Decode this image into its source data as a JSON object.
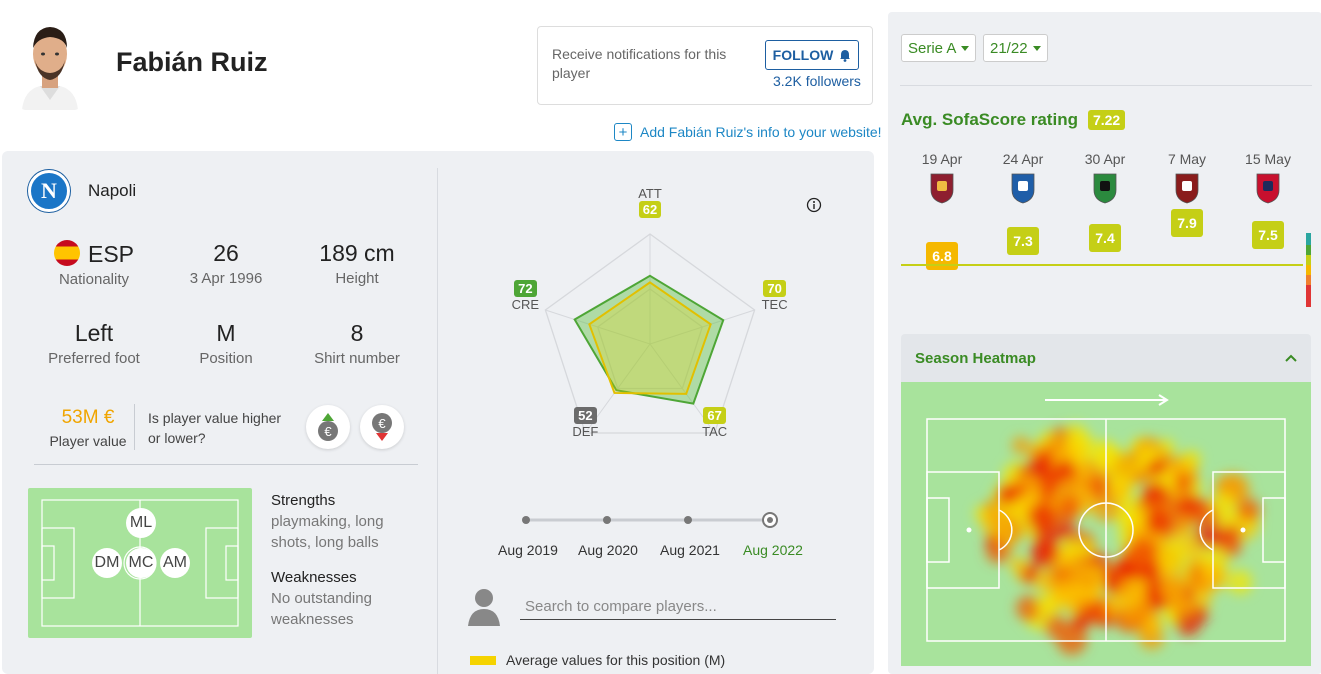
{
  "player": {
    "name": "Fabián Ruiz",
    "club": "Napoli",
    "nationality_code": "ESP",
    "nationality_label": "Nationality",
    "age": "26",
    "dob": "3 Apr 1996",
    "height": "189 cm",
    "height_label": "Height",
    "foot": "Left",
    "foot_label": "Preferred foot",
    "position": "M",
    "position_label": "Position",
    "shirt": "8",
    "shirt_label": "Shirt number",
    "value": "53M €",
    "value_label": "Player value",
    "value_question": "Is player value higher or lower?"
  },
  "notifications": {
    "text": "Receive notifications for this player",
    "follow_label": "FOLLOW",
    "followers": "3.2K followers"
  },
  "add_info": "Add Fabián Ruiz's info to your website!",
  "positions_map": [
    "ML",
    "DM",
    "MC",
    "AM"
  ],
  "strengths": {
    "heading": "Strengths",
    "text": "playmaking, long shots, long balls"
  },
  "weaknesses": {
    "heading": "Weaknesses",
    "text": "No outstanding weaknesses"
  },
  "attributes": {
    "items": [
      {
        "label": "ATT",
        "player": 62,
        "color": "#c5cf16"
      },
      {
        "label": "TEC",
        "player": 70,
        "color": "#c5cf16"
      },
      {
        "label": "TAC",
        "player": 67,
        "color": "#c5cf16"
      },
      {
        "label": "DEF",
        "player": 52,
        "color": "#6b6b6b"
      },
      {
        "label": "CRE",
        "player": 72,
        "color": "#4ea636"
      }
    ],
    "average_values": [
      56,
      58,
      56,
      55,
      58
    ],
    "timeline": [
      "Aug 2019",
      "Aug 2020",
      "Aug 2021",
      "Aug 2022"
    ],
    "active_timeline": "Aug 2022",
    "search_placeholder": "Search to compare players...",
    "legend": "Average values for this position (M)"
  },
  "filters": {
    "league": "Serie A",
    "season": "21/22"
  },
  "rating": {
    "title": "Avg. SofaScore rating",
    "value": "7.22",
    "matches": [
      {
        "date": "19 Apr",
        "rating": 6.8,
        "color": "#f5b800",
        "logo": "roma-icon"
      },
      {
        "date": "24 Apr",
        "rating": 7.3,
        "color": "#c5cf16",
        "logo": "empoli-icon"
      },
      {
        "date": "30 Apr",
        "rating": 7.4,
        "color": "#c5cf16",
        "logo": "sassuolo-icon"
      },
      {
        "date": "7 May",
        "rating": 7.9,
        "color": "#c5cf16",
        "logo": "torino-icon"
      },
      {
        "date": "15 May",
        "rating": 7.5,
        "color": "#c5cf16",
        "logo": "genoa-icon"
      }
    ]
  },
  "heatmap": {
    "title": "Season Heatmap"
  },
  "colors": {
    "accent": "#3a8b24",
    "link": "#1d87c5",
    "rating": "#c5cf16",
    "value": "#f0a500"
  }
}
